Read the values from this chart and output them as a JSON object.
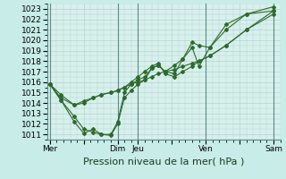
{
  "xlabel": "Pression niveau de la mer( hPa )",
  "bg_color": "#c8ece8",
  "plot_bg": "#d8f0ec",
  "grid_color": "#b0d4d0",
  "vline_color": "#5a8a8a",
  "line_color": "#2d6a2d",
  "marker_color": "#2d6a2d",
  "ylim": [
    1010.5,
    1023.5
  ],
  "yticks": [
    1011,
    1012,
    1013,
    1014,
    1015,
    1016,
    1017,
    1018,
    1019,
    1020,
    1021,
    1022,
    1023
  ],
  "xtick_labels": [
    "Mer",
    "",
    "Dim",
    "Jeu",
    "",
    "Ven",
    "",
    "Sam"
  ],
  "xtick_positions": [
    0,
    2.5,
    5,
    6.5,
    9,
    11.5,
    14,
    16.5
  ],
  "xlim": [
    -0.2,
    17.0
  ],
  "series": [
    {
      "x": [
        0,
        0.8,
        1.8,
        2.5,
        3.2,
        3.8,
        4.5,
        5.0,
        5.5,
        6.0,
        6.5,
        7.0,
        7.5,
        8.0,
        8.5,
        9.2,
        9.8,
        10.5,
        11.0,
        11.8,
        13.0,
        14.5,
        16.5
      ],
      "y": [
        1015.8,
        1014.3,
        1012.2,
        1011.1,
        1011.5,
        1011.0,
        1011.0,
        1012.2,
        1015.0,
        1015.8,
        1016.2,
        1016.5,
        1017.3,
        1017.6,
        1017.0,
        1017.6,
        1018.2,
        1019.3,
        1017.5,
        1019.3,
        1021.0,
        1022.5,
        1022.8
      ]
    },
    {
      "x": [
        0,
        0.8,
        1.8,
        2.5,
        3.2,
        3.8,
        4.5,
        5.0,
        5.5,
        6.0,
        6.5,
        7.0,
        7.5,
        8.0,
        8.5,
        9.2,
        9.8,
        10.5,
        11.0,
        11.8,
        13.0,
        14.5,
        16.5
      ],
      "y": [
        1015.8,
        1014.8,
        1013.8,
        1014.2,
        1014.5,
        1014.8,
        1015.0,
        1015.2,
        1015.5,
        1015.8,
        1016.0,
        1016.2,
        1016.5,
        1016.8,
        1017.0,
        1017.2,
        1017.5,
        1017.8,
        1018.0,
        1018.5,
        1019.5,
        1021.0,
        1022.5
      ]
    },
    {
      "x": [
        0,
        0.8,
        1.8,
        2.5,
        3.2,
        3.8,
        4.5,
        5.0,
        5.5,
        6.0,
        6.5,
        7.0,
        7.5,
        8.0,
        8.5,
        9.2,
        9.8,
        10.5,
        11.0,
        11.8,
        13.0,
        14.5,
        16.5
      ],
      "y": [
        1015.8,
        1014.5,
        1013.8,
        1014.0,
        1014.5,
        1014.8,
        1015.0,
        1015.2,
        1015.5,
        1016.0,
        1016.5,
        1017.0,
        1017.5,
        1017.8,
        1016.8,
        1016.5,
        1017.0,
        1017.5,
        1018.0,
        1018.5,
        1019.5,
        1021.0,
        1022.8
      ]
    },
    {
      "x": [
        0,
        0.8,
        1.8,
        2.5,
        3.2,
        3.8,
        4.5,
        5.0,
        5.5,
        6.0,
        6.5,
        7.0,
        7.5,
        8.0,
        8.5,
        9.2,
        9.8,
        10.5,
        11.0,
        11.8,
        13.0,
        14.5,
        16.5
      ],
      "y": [
        1015.8,
        1014.3,
        1012.7,
        1011.5,
        1011.2,
        1011.0,
        1010.9,
        1012.0,
        1014.5,
        1015.2,
        1015.8,
        1016.2,
        1017.3,
        1017.6,
        1017.0,
        1016.8,
        1018.2,
        1019.8,
        1019.5,
        1019.3,
        1021.5,
        1022.5,
        1023.2
      ]
    }
  ],
  "day_lines_x": [
    0,
    5.0,
    6.5,
    11.5,
    16.5
  ],
  "xlabel_fontsize": 8,
  "ytick_fontsize": 6.5,
  "xtick_fontsize": 6.5
}
